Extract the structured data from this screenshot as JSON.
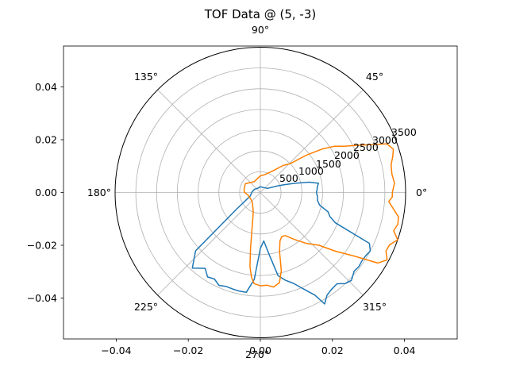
{
  "chart_data": {
    "type": "line",
    "title": "TOF Data @ (5, -3)",
    "cartesian_axes": {
      "xlim": [
        -0.055,
        0.055
      ],
      "ylim": [
        -0.055,
        0.055
      ],
      "x_ticks": [
        "−0.04",
        "−0.02",
        "0.00",
        "0.02",
        "0.04"
      ],
      "y_ticks": [
        "0.04",
        "0.02",
        "0.00",
        "−0.02",
        "−0.04"
      ]
    },
    "polar_axes": {
      "rmax": 3500,
      "radial_ticks": [
        "500",
        "1000",
        "1500",
        "2000",
        "2500",
        "3000",
        "3500"
      ],
      "angle_ticks": [
        "0°",
        "45°",
        "90°",
        "135°",
        "180°",
        "225°",
        "270°",
        "315°"
      ],
      "grid": true
    },
    "series": [
      {
        "color": "#1f77b4",
        "points": [
          [
            0,
            1350
          ],
          [
            3,
            1370
          ],
          [
            6,
            1380
          ],
          [
            9,
            1420
          ],
          [
            12,
            1200
          ],
          [
            15,
            860
          ],
          [
            18,
            600
          ],
          [
            21,
            430
          ],
          [
            30,
            200
          ],
          [
            60,
            140
          ],
          [
            90,
            140
          ],
          [
            120,
            120
          ],
          [
            150,
            160
          ],
          [
            175,
            200
          ],
          [
            200,
            260
          ],
          [
            215,
            700
          ],
          [
            222,
            2100
          ],
          [
            228,
            2450
          ],
          [
            234,
            2260
          ],
          [
            238,
            2400
          ],
          [
            242,
            2360
          ],
          [
            246,
            2450
          ],
          [
            250,
            2410
          ],
          [
            254,
            2420
          ],
          [
            258,
            2430
          ],
          [
            262,
            2430
          ],
          [
            266,
            2100
          ],
          [
            270,
            1350
          ],
          [
            274,
            1170
          ],
          [
            278,
            1500
          ],
          [
            282,
            2050
          ],
          [
            286,
            2200
          ],
          [
            290,
            2330
          ],
          [
            294,
            2540
          ],
          [
            298,
            2800
          ],
          [
            300,
            3100
          ],
          [
            303,
            2950
          ],
          [
            306,
            2900
          ],
          [
            310,
            2870
          ],
          [
            313,
            3000
          ],
          [
            316,
            3050
          ],
          [
            320,
            2950
          ],
          [
            323,
            2970
          ],
          [
            326,
            2950
          ],
          [
            329,
            2960
          ],
          [
            332,
            3000
          ],
          [
            335,
            2900
          ],
          [
            338,
            1950
          ],
          [
            341,
            1770
          ],
          [
            344,
            1700
          ],
          [
            348,
            1460
          ],
          [
            352,
            1390
          ],
          [
            356,
            1380
          ]
        ]
      },
      {
        "color": "#ff7f00",
        "points": [
          [
            0,
            3180
          ],
          [
            4,
            3240
          ],
          [
            8,
            3200
          ],
          [
            12,
            3220
          ],
          [
            15,
            3300
          ],
          [
            18,
            3370
          ],
          [
            21,
            3270
          ],
          [
            25,
            2700
          ],
          [
            29,
            2300
          ],
          [
            32,
            2100
          ],
          [
            35,
            1830
          ],
          [
            39,
            1430
          ],
          [
            44,
            1000
          ],
          [
            50,
            850
          ],
          [
            60,
            600
          ],
          [
            75,
            450
          ],
          [
            90,
            400
          ],
          [
            120,
            300
          ],
          [
            150,
            420
          ],
          [
            170,
            400
          ],
          [
            180,
            380
          ],
          [
            190,
            310
          ],
          [
            210,
            280
          ],
          [
            230,
            300
          ],
          [
            250,
            500
          ],
          [
            260,
            1350
          ],
          [
            262,
            1800
          ],
          [
            264,
            2050
          ],
          [
            266,
            2200
          ],
          [
            270,
            2250
          ],
          [
            274,
            2240
          ],
          [
            278,
            2300
          ],
          [
            282,
            2220
          ],
          [
            285,
            1950
          ],
          [
            288,
            1500
          ],
          [
            292,
            1260
          ],
          [
            296,
            1180
          ],
          [
            300,
            1200
          ],
          [
            306,
            1400
          ],
          [
            312,
            1650
          ],
          [
            318,
            1900
          ],
          [
            322,
            2300
          ],
          [
            326,
            2750
          ],
          [
            329,
            3300
          ],
          [
            332,
            3460
          ],
          [
            335,
            3340
          ],
          [
            338,
            3360
          ],
          [
            341,
            3500
          ],
          [
            344,
            3340
          ],
          [
            347,
            3400
          ],
          [
            350,
            3380
          ],
          [
            353,
            3230
          ],
          [
            356,
            3100
          ],
          [
            358,
            3180
          ]
        ]
      }
    ]
  }
}
